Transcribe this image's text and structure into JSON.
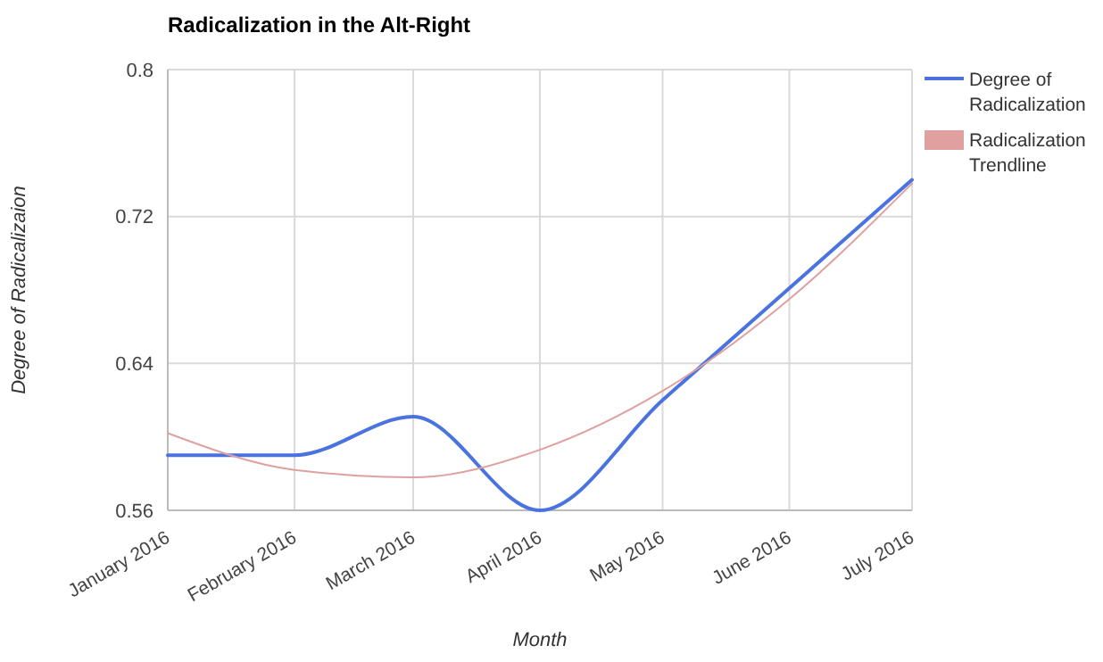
{
  "chart_data": {
    "type": "line",
    "title": "Radicalization in the Alt-Right",
    "xlabel": "Month",
    "ylabel": "Degree of Radicalizaion",
    "x": [
      "2016-01",
      "2016-02",
      "2016-03",
      "2016-04",
      "2016-05",
      "2016-06",
      "2016-07"
    ],
    "series": [
      {
        "name": "Degree of Radicalization",
        "color": "#4a73e0",
        "values": [
          0.59,
          0.59,
          0.611,
          0.56,
          0.62,
          0.681,
          0.74
        ]
      },
      {
        "name": "Radicalization Trendline",
        "color": "#e0a0a0",
        "values": [
          0.602,
          0.582,
          0.578,
          0.593,
          0.625,
          0.675,
          0.738
        ]
      }
    ],
    "xlim": [
      "2016-01",
      "2016-07"
    ],
    "xticks": [
      {
        "value": "2016-01",
        "label": "January 2016"
      },
      {
        "value": "2016-02",
        "label": "February 2016"
      },
      {
        "value": "2016-03",
        "label": "March 2016"
      },
      {
        "value": "2016-04",
        "label": "April 2016"
      },
      {
        "value": "2016-05",
        "label": "May 2016"
      },
      {
        "value": "2016-06",
        "label": "June 2016"
      },
      {
        "value": "2016-07",
        "label": "July 2016"
      }
    ],
    "ylim": [
      0.56,
      0.8
    ],
    "yticks": [
      0.56,
      0.64,
      0.72,
      0.8
    ],
    "grid": true,
    "legend": "top right",
    "marker": "none",
    "line_style": "solid"
  }
}
